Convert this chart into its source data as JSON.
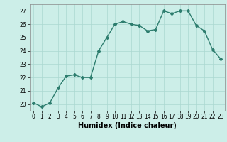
{
  "x": [
    0,
    1,
    2,
    3,
    4,
    5,
    6,
    7,
    8,
    9,
    10,
    11,
    12,
    13,
    14,
    15,
    16,
    17,
    18,
    19,
    20,
    21,
    22,
    23
  ],
  "y": [
    20.1,
    19.8,
    20.1,
    21.2,
    22.1,
    22.2,
    22.0,
    22.0,
    24.0,
    25.0,
    26.0,
    26.2,
    26.0,
    25.9,
    25.5,
    25.6,
    27.0,
    26.8,
    27.0,
    27.0,
    25.9,
    25.5,
    24.1,
    23.4
  ],
  "line_color": "#2d7d6e",
  "bg_color": "#cceee8",
  "grid_color": "#aad8d0",
  "xlabel": "Humidex (Indice chaleur)",
  "ylim": [
    19.5,
    27.5
  ],
  "yticks": [
    20,
    21,
    22,
    23,
    24,
    25,
    26,
    27
  ],
  "xticks": [
    0,
    1,
    2,
    3,
    4,
    5,
    6,
    7,
    8,
    9,
    10,
    11,
    12,
    13,
    14,
    15,
    16,
    17,
    18,
    19,
    20,
    21,
    22,
    23
  ],
  "marker": "D",
  "markersize": 2.0,
  "linewidth": 1.0,
  "tick_fontsize": 5.5,
  "xlabel_fontsize": 7.0
}
